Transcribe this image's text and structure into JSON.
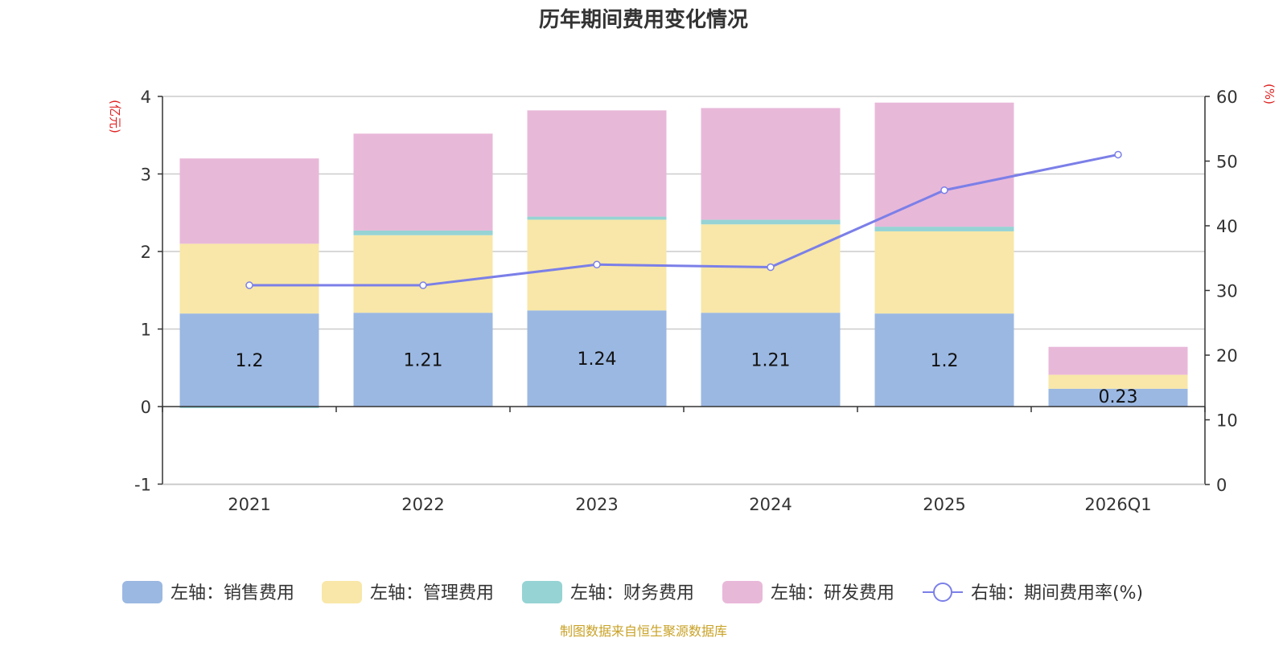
{
  "chart_data": {
    "type": "bar",
    "title": "历年期间费用变化情况",
    "left_unit": "(亿元)",
    "right_unit": "(%)",
    "categories": [
      "2021",
      "2022",
      "2023",
      "2024",
      "2025",
      "2026Q1"
    ],
    "series": [
      {
        "name": "左轴：销售费用",
        "axis": "left",
        "kind": "bar",
        "color": "#9bb8e2",
        "values": [
          1.2,
          1.21,
          1.24,
          1.21,
          1.2,
          0.23
        ]
      },
      {
        "name": "左轴：管理费用",
        "axis": "left",
        "kind": "bar",
        "color": "#f8e7a8",
        "values": [
          0.9,
          1.0,
          1.17,
          1.14,
          1.06,
          0.18
        ]
      },
      {
        "name": "左轴：财务费用",
        "axis": "left",
        "kind": "bar",
        "color": "#96d3d4",
        "values": [
          -0.02,
          0.06,
          0.04,
          0.06,
          0.06,
          0.0
        ]
      },
      {
        "name": "左轴：研发费用",
        "axis": "left",
        "kind": "bar",
        "color": "#e8b8d9",
        "values": [
          1.1,
          1.25,
          1.37,
          1.44,
          1.6,
          0.36
        ]
      },
      {
        "name": "右轴：期间费用率(%)",
        "axis": "right",
        "kind": "line",
        "color": "#7b7fe8",
        "values": [
          30.8,
          30.8,
          34.0,
          33.6,
          45.5,
          51.0
        ]
      }
    ],
    "data_labels": [
      "1.2",
      "1.21",
      "1.24",
      "1.21",
      "1.2",
      "0.23"
    ],
    "y_left": {
      "min": -1,
      "max": 4,
      "ticks": [
        -1,
        0,
        1,
        2,
        3,
        4
      ]
    },
    "y_right": {
      "min": 0,
      "max": 60,
      "ticks": [
        0,
        10,
        20,
        30,
        40,
        50,
        60
      ]
    },
    "grid": true,
    "legend_position": "bottom",
    "source": "制图数据来自恒生聚源数据库"
  }
}
